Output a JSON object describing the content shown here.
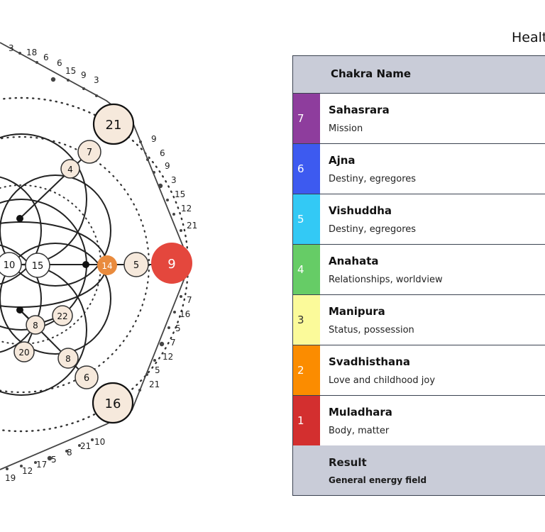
{
  "title_partial": "Healt",
  "table": {
    "header": "Chakra Name",
    "rows": [
      {
        "num": "7",
        "name": "Sahasrara",
        "desc": "Mission",
        "color": "#8e3d9d"
      },
      {
        "num": "6",
        "name": "Ajna",
        "desc": "Destiny, egregores",
        "color": "#3d5af0"
      },
      {
        "num": "5",
        "name": "Vishuddha",
        "desc": "Destiny, egregores",
        "color": "#33c9f5"
      },
      {
        "num": "4",
        "name": "Anahata",
        "desc": "Relationships, worldview",
        "color": "#66cc66"
      },
      {
        "num": "3",
        "name": "Manipura",
        "desc": "Status, possession",
        "color": "#fbfa9a"
      },
      {
        "num": "2",
        "name": "Svadhisthana",
        "desc": "Love and childhood joy",
        "color": "#fb8c00"
      },
      {
        "num": "1",
        "name": "Muladhara",
        "desc": "Body, matter",
        "color": "#d32f2f"
      }
    ],
    "result": {
      "name": "Result",
      "desc": "General energy field"
    }
  },
  "diagram": {
    "nodes": {
      "top_big": "21",
      "bottom_big": "16",
      "right_big": "9",
      "orange": "14",
      "center_a": "10",
      "center_b": "15",
      "right_small": "5",
      "upper_a": "7",
      "upper_b": "4",
      "lower_a": "8",
      "lower_b": "6",
      "lower_c": "22",
      "lower_d": "8",
      "lower_e": "20"
    },
    "top_scale": [
      "3",
      "18",
      "6",
      "6",
      "15",
      "9",
      "3"
    ],
    "upper_right_scale": [
      "9",
      "6",
      "9",
      "3",
      "15",
      "12",
      "21"
    ],
    "lower_right_scale": [
      "7",
      "16",
      "5",
      "7",
      "12",
      "5",
      "21"
    ],
    "bottom_scale": [
      "10",
      "21",
      "8",
      "5",
      "17",
      "12",
      "19"
    ]
  }
}
